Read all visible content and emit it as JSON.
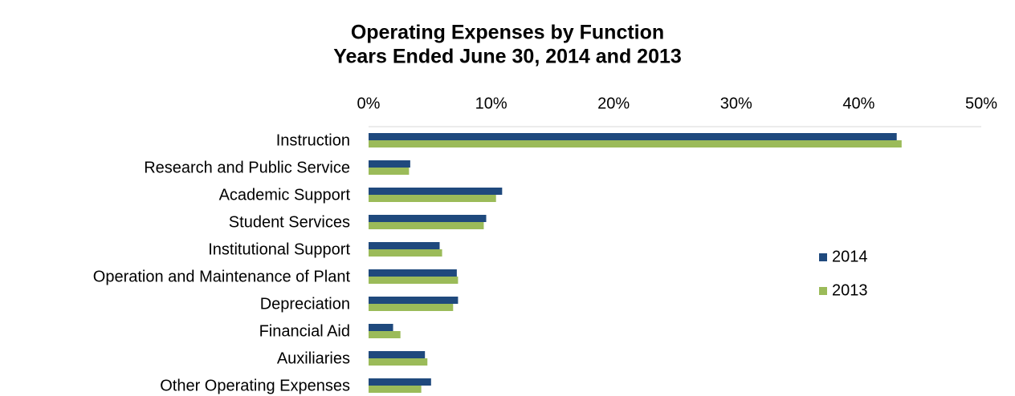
{
  "chart_data": {
    "type": "barh",
    "title": "Operating Expenses by Function",
    "subtitle": "Years Ended June 30, 2014 and 2013",
    "categories": [
      "Instruction",
      "Research and Public Service",
      "Academic Support",
      "Student Services",
      "Institutional Support",
      "Operation and Maintenance of Plant",
      "Depreciation",
      "Financial Aid",
      "Auxiliaries",
      "Other Operating Expenses"
    ],
    "series": [
      {
        "name": "2014",
        "color": "#1f497d",
        "values": [
          43.1,
          3.4,
          10.9,
          9.6,
          5.8,
          7.2,
          7.3,
          2.0,
          4.6,
          5.1
        ]
      },
      {
        "name": "2013",
        "color": "#9bbb59",
        "values": [
          43.5,
          3.3,
          10.4,
          9.4,
          6.0,
          7.3,
          6.9,
          2.6,
          4.8,
          4.3
        ]
      }
    ],
    "xlim": [
      0,
      50
    ],
    "xticks": [
      {
        "value": 0,
        "label": "0%"
      },
      {
        "value": 10,
        "label": "10%"
      },
      {
        "value": 20,
        "label": "20%"
      },
      {
        "value": 30,
        "label": "30%"
      },
      {
        "value": 40,
        "label": "40%"
      },
      {
        "value": 50,
        "label": "50%"
      }
    ],
    "legend": "right"
  }
}
